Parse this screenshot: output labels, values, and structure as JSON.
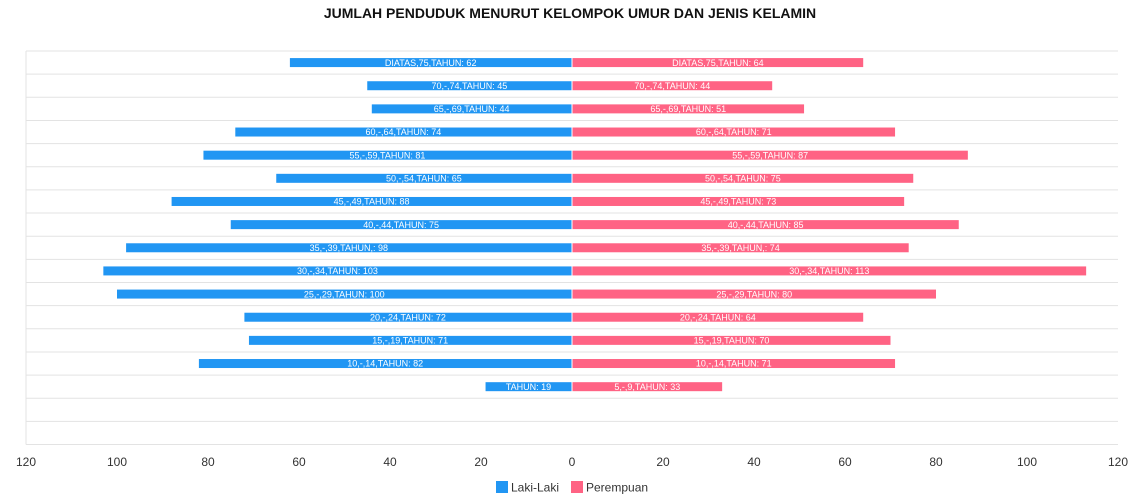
{
  "chart_data": {
    "type": "bar",
    "orientation": "horizontal-mirrored",
    "title": "JUMLAH PENDUDUK MENURUT KELOMPOK UMUR DAN JENIS KELAMIN",
    "xlabel": "",
    "ylabel": "",
    "xlim": [
      -120,
      120
    ],
    "x_ticks": [
      -120,
      -100,
      -80,
      -60,
      -40,
      -20,
      0,
      20,
      40,
      60,
      80,
      100,
      120
    ],
    "x_tick_labels": [
      "120",
      "100",
      "80",
      "60",
      "40",
      "20",
      "0",
      "20",
      "40",
      "60",
      "80",
      "100",
      "120"
    ],
    "grid": true,
    "legend_position": "bottom",
    "categories": [
      "DIATAS,75,TAHUN",
      "70,-,74,TAHUN",
      "65,-,69,TAHUN",
      "60,-,64,TAHUN",
      "55,-,59,TAHUN",
      "50,-,54,TAHUN",
      "45,-,49,TAHUN",
      "40,-,44,TAHUN",
      "35,-,39,TAHUN,",
      "30,-,34,TAHUN",
      "25,-,29,TAHUN",
      "20,-,24,TAHUN",
      "15,-,19,TAHUN",
      "10,-,14,TAHUN",
      "5,-,9,TAHUN",
      "",
      ""
    ],
    "series": [
      {
        "name": "Laki-Laki",
        "color": "#2196f3",
        "values": [
          62,
          45,
          44,
          74,
          81,
          65,
          88,
          75,
          98,
          103,
          100,
          72,
          71,
          82,
          19,
          null,
          null
        ],
        "labels": [
          "DIATAS,75,TAHUN: 62",
          "70,-,74,TAHUN: 45",
          "65,-,69,TAHUN: 44",
          "60,-,64,TAHUN: 74",
          "55,-,59,TAHUN: 81",
          "50,-,54,TAHUN: 65",
          "45,-,49,TAHUN: 88",
          "40,-,44,TAHUN: 75",
          "35,-,39,TAHUN,: 98",
          "30,-,34,TAHUN: 103",
          "25,-,29,TAHUN: 100",
          "20,-,24,TAHUN: 72",
          "15,-,19,TAHUN: 71",
          "10,-,14,TAHUN: 82",
          "TAHUN: 19",
          "",
          ""
        ]
      },
      {
        "name": "Perempuan",
        "color": "#ff6384",
        "values": [
          64,
          44,
          51,
          71,
          87,
          75,
          73,
          85,
          74,
          113,
          80,
          64,
          70,
          71,
          33,
          null,
          null
        ],
        "labels": [
          "DIATAS,75,TAHUN: 64",
          "70,-,74,TAHUN: 44",
          "65,-,69,TAHUN: 51",
          "60,-,64,TAHUN: 71",
          "55,-,59,TAHUN: 87",
          "50,-,54,TAHUN: 75",
          "45,-,49,TAHUN: 73",
          "40,-,44,TAHUN: 85",
          "35,-,39,TAHUN,: 74",
          "30,-,34,TAHUN: 113",
          "25,-,29,TAHUN: 80",
          "20,-,24,TAHUN: 64",
          "15,-,19,TAHUN: 70",
          "10,-,14,TAHUN: 71",
          "5,-,9,TAHUN: 33",
          "",
          ""
        ]
      }
    ]
  }
}
